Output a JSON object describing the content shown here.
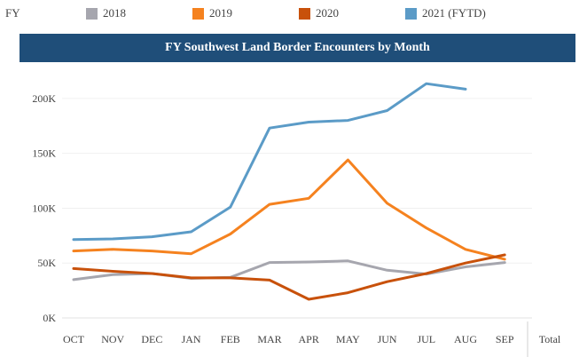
{
  "legend": {
    "fy_label": "FY",
    "items": [
      {
        "label": "2018",
        "color": "#a6a6ae"
      },
      {
        "label": "2019",
        "color": "#f5821f"
      },
      {
        "label": "2020",
        "color": "#c8510b"
      },
      {
        "label": "2021 (FYTD)",
        "color": "#5b9bc7"
      }
    ]
  },
  "chart_data": {
    "type": "line",
    "title": "FY Southwest Land Border Encounters by Month",
    "categories": [
      "OCT",
      "NOV",
      "DEC",
      "JAN",
      "FEB",
      "MAR",
      "APR",
      "MAY",
      "JUN",
      "JUL",
      "AUG",
      "SEP"
    ],
    "total_label": "Total",
    "y_ticks": [
      "0K",
      "50K",
      "100K",
      "150K",
      "200K"
    ],
    "y_tick_values": [
      0,
      50000,
      100000,
      150000,
      200000
    ],
    "ylim": [
      0,
      225000
    ],
    "grid": true,
    "series": [
      {
        "name": "2018",
        "color": "#a6a6ae",
        "values": [
          34900,
          39500,
          40500,
          36000,
          37000,
          50500,
          51000,
          52000,
          43500,
          40000,
          46500,
          50500
        ]
      },
      {
        "name": "2019",
        "color": "#f5821f",
        "values": [
          61000,
          62500,
          61000,
          58500,
          76500,
          103500,
          109000,
          144000,
          104500,
          82000,
          62500,
          53500
        ]
      },
      {
        "name": "2020",
        "color": "#c8510b",
        "values": [
          45000,
          42500,
          40500,
          36500,
          36500,
          34500,
          17000,
          23000,
          33000,
          40500,
          50000,
          57500
        ]
      },
      {
        "name": "2021 (FYTD)",
        "color": "#5b9bc7",
        "values": [
          71500,
          72000,
          74000,
          78500,
          101000,
          173000,
          178500,
          180000,
          189000,
          213500,
          208500,
          null
        ]
      }
    ]
  }
}
